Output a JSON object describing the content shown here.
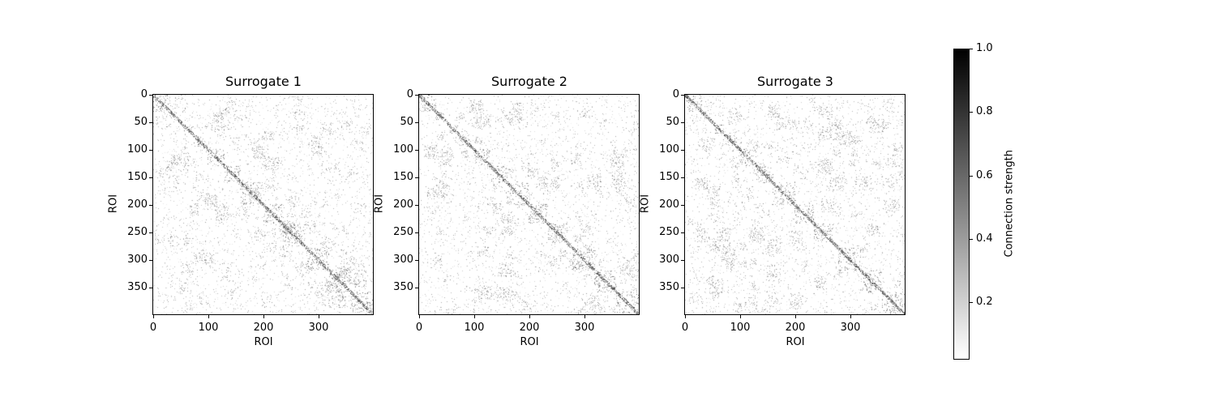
{
  "chart_data": [
    {
      "type": "heatmap",
      "title": "Surrogate 1",
      "xlabel": "ROI",
      "ylabel": "ROI",
      "xticks": [
        0,
        100,
        200,
        300
      ],
      "yticks": [
        0,
        50,
        100,
        150,
        200,
        250,
        300,
        350
      ],
      "xlim": [
        0,
        399
      ],
      "ylim": [
        399,
        0
      ],
      "matrix_size": 400,
      "colormap": "Greys",
      "description": "Sparse symmetric connectivity matrix with strong diagonal and block structure"
    },
    {
      "type": "heatmap",
      "title": "Surrogate 2",
      "xlabel": "ROI",
      "ylabel": "ROI",
      "xticks": [
        0,
        100,
        200,
        300
      ],
      "yticks": [
        0,
        50,
        100,
        150,
        200,
        250,
        300,
        350
      ],
      "xlim": [
        0,
        399
      ],
      "ylim": [
        399,
        0
      ],
      "matrix_size": 400,
      "colormap": "Greys",
      "description": "Sparse symmetric connectivity matrix with strong diagonal and block structure"
    },
    {
      "type": "heatmap",
      "title": "Surrogate 3",
      "xlabel": "ROI",
      "ylabel": "ROI",
      "xticks": [
        0,
        100,
        200,
        300
      ],
      "yticks": [
        0,
        50,
        100,
        150,
        200,
        250,
        300,
        350
      ],
      "xlim": [
        0,
        399
      ],
      "ylim": [
        399,
        0
      ],
      "matrix_size": 400,
      "colormap": "Greys",
      "description": "Sparse symmetric connectivity matrix with strong diagonal and block structure"
    }
  ],
  "colorbar": {
    "label": "Connection strength",
    "ticks": [
      "0.2",
      "0.4",
      "0.6",
      "0.8",
      "1.0"
    ],
    "range": [
      0.02,
      1.0
    ],
    "colors": {
      "low": "#ffffff",
      "high": "#000000"
    }
  },
  "panels": [
    {
      "title": "Surrogate 1",
      "seed": 11
    },
    {
      "title": "Surrogate 2",
      "seed": 23
    },
    {
      "title": "Surrogate 3",
      "seed": 37
    }
  ],
  "axis": {
    "xlabel": "ROI",
    "ylabel": "ROI",
    "xtick_labels": [
      "0",
      "100",
      "200",
      "300"
    ],
    "ytick_labels": [
      "0",
      "50",
      "100",
      "150",
      "200",
      "250",
      "300",
      "350"
    ]
  }
}
